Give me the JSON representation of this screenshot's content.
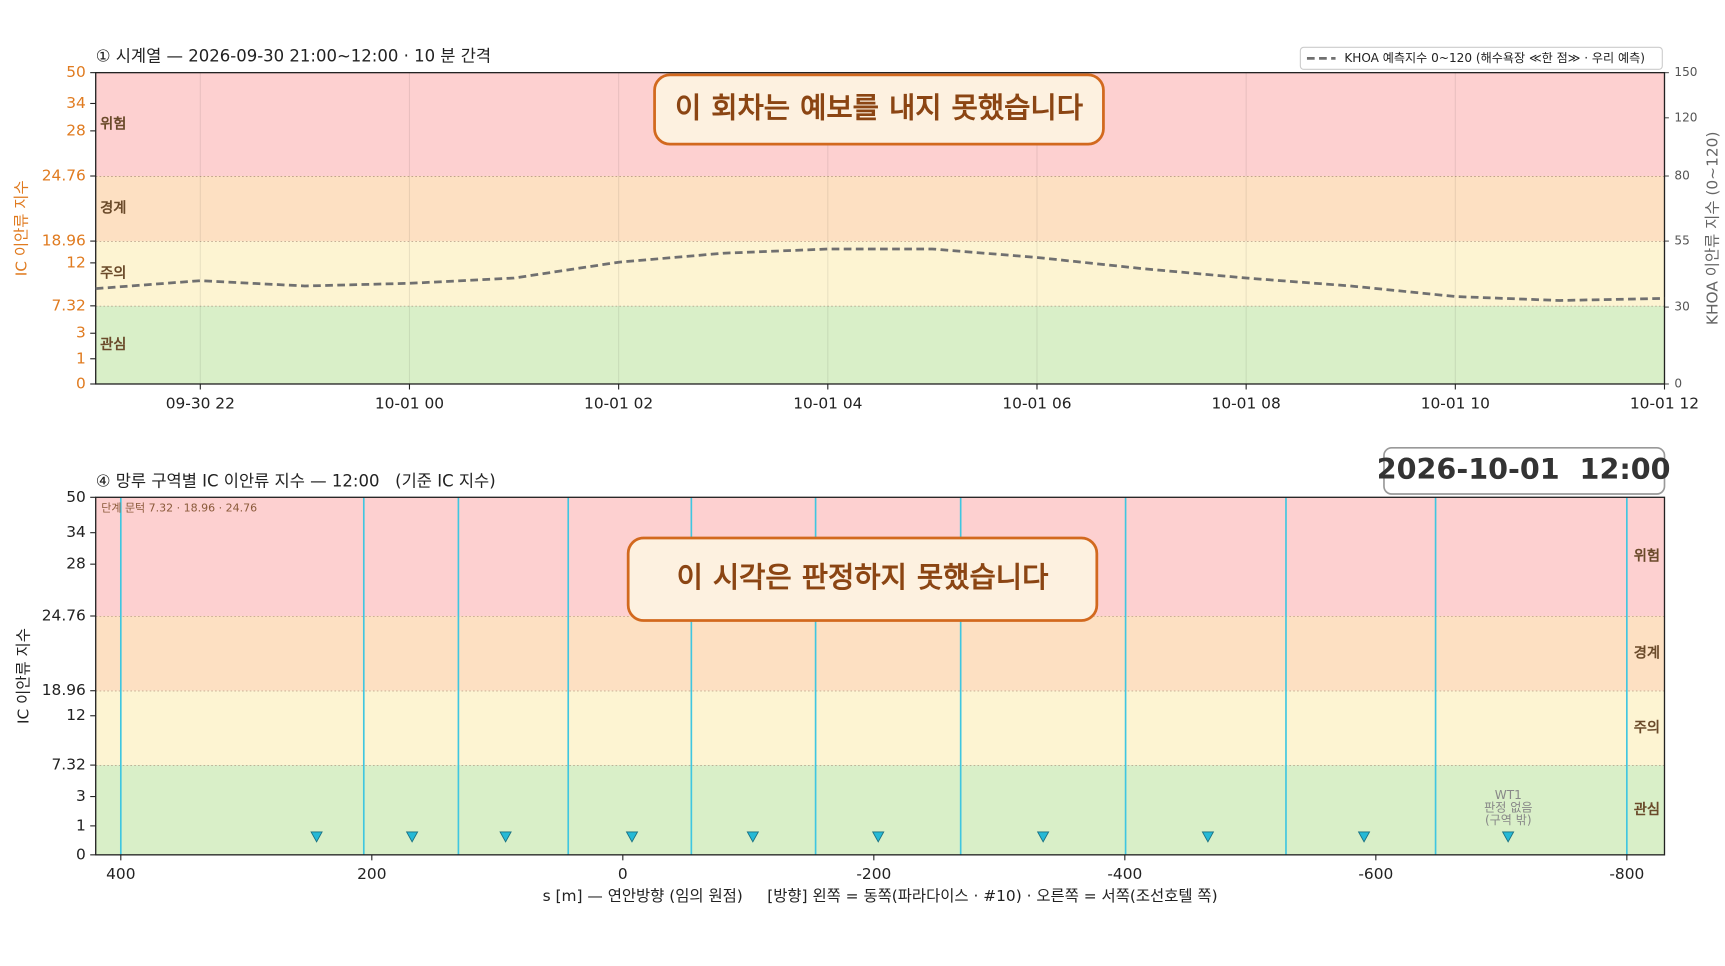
{
  "chart_data": [
    {
      "type": "line",
      "title": "① 시계열 — 2026-09-30 21:00~12:00 · 10 분 간격",
      "ylabel": "IC 이안류 지수",
      "ylabel_color": "#e07b20",
      "y2label": "KHOA 이안류 지수 (0~120)",
      "xlim": [
        "2026-09-30 21:00",
        "2026-10-01 12:00"
      ],
      "xticks": [
        {
          "value": "2026-09-30 22:00",
          "label": "09-30 22"
        },
        {
          "value": "2026-10-01 00:00",
          "label": "10-01 00"
        },
        {
          "value": "2026-10-01 02:00",
          "label": "10-01 02"
        },
        {
          "value": "2026-10-01 04:00",
          "label": "10-01 04"
        },
        {
          "value": "2026-10-01 06:00",
          "label": "10-01 06"
        },
        {
          "value": "2026-10-01 08:00",
          "label": "10-01 08"
        },
        {
          "value": "2026-10-01 10:00",
          "label": "10-01 10"
        },
        {
          "value": "2026-10-01 12:00",
          "label": "10-01 12"
        }
      ],
      "ylim": [
        0,
        50
      ],
      "yticks": [
        0,
        1,
        3,
        7.32,
        12,
        18.96,
        24.76,
        28,
        34,
        50
      ],
      "y2lim": [
        0,
        150
      ],
      "y2ticks": [
        0,
        30,
        55,
        80,
        120,
        150
      ],
      "grid": true,
      "legend": "upper right",
      "bands": [
        {
          "label": "관심",
          "range": [
            0,
            7.32
          ],
          "color": "#d9efc8"
        },
        {
          "label": "주의",
          "range": [
            7.32,
            18.96
          ],
          "color": "#fdf4d2"
        },
        {
          "label": "경계",
          "range": [
            18.96,
            24.76
          ],
          "color": "#fde0c2"
        },
        {
          "label": "위험",
          "range": [
            24.76,
            50
          ],
          "color": "#fdd0d0"
        }
      ],
      "band_label_side": "left",
      "x": [
        "2026-09-30 21:00",
        "2026-09-30 22:00",
        "2026-09-30 23:00",
        "2026-10-01 00:00",
        "2026-10-01 01:00",
        "2026-10-01 02:00",
        "2026-10-01 03:00",
        "2026-10-01 04:00",
        "2026-10-01 05:00",
        "2026-10-01 06:00",
        "2026-10-01 07:00",
        "2026-10-01 08:00",
        "2026-10-01 09:00",
        "2026-10-01 10:00",
        "2026-10-01 11:00",
        "2026-10-01 12:00"
      ],
      "series": [
        {
          "name": "KHOA 예측지수 0~120 (해수욕장 ≪한 점≫ · 우리 예측)",
          "color": "#707070",
          "axis": "y2",
          "values": [
            37,
            40,
            38,
            39,
            41,
            47,
            50.4,
            52,
            52,
            48.8,
            44.6,
            41,
            38,
            34,
            32.5,
            33.3
          ]
        }
      ],
      "annotation": "이 회차는 예보를 내지 못했습니다"
    },
    {
      "type": "scatter",
      "title": "④ 망루 구역별 IC 이안류 지수 — 12:00   (기준 IC 지수)",
      "timestamp": "2026-10-01  12:00",
      "ylabel": "IC 이안류 지수",
      "ylabel_color": "#222",
      "xlabel": "s [m] — 연안방향 (임의 원점)     [방향] 왼쪽 = 동쪽(파라다이스 · #10) · 오른쪽 = 서쪽(조선호텔 쪽)",
      "xlim": [
        420,
        -830
      ],
      "xticks": [
        400,
        200,
        0,
        -200,
        -400,
        -600,
        -800
      ],
      "ylim": [
        0,
        50
      ],
      "yticks": [
        0,
        1,
        3,
        7.32,
        12,
        18.96,
        24.76,
        28,
        34,
        50
      ],
      "bands": [
        {
          "label": "관심",
          "range": [
            0,
            7.32
          ],
          "color": "#d9efc8"
        },
        {
          "label": "주의",
          "range": [
            7.32,
            18.96
          ],
          "color": "#fdf4d2"
        },
        {
          "label": "경계",
          "range": [
            18.96,
            24.76
          ],
          "color": "#fde0c2"
        },
        {
          "label": "위험",
          "range": [
            24.76,
            50
          ],
          "color": "#fdd0d0"
        }
      ],
      "band_label_side": "right",
      "threshold_note": "단계 문턱 7.32 · 18.96 · 24.76",
      "zone_boundaries": [
        400,
        206.4,
        131,
        43.5,
        -54.6,
        -153.6,
        -269.2,
        -400.6,
        -528.4,
        -647.6,
        -800
      ],
      "zone_color": "#3fc6e0",
      "series": [
        {
          "color": "#25b9d6",
          "x": [
            244,
            167.9,
            93.4,
            -7.3,
            -103.6,
            -203.5,
            -334.9,
            -466.2,
            -590.6,
            -705.4
          ],
          "values": [
            0.6,
            0.6,
            0.6,
            0.6,
            0.6,
            0.6,
            0.6,
            0.6,
            0.6,
            0.6
          ]
        }
      ],
      "point_note": [
        "WT1",
        "판정 없음",
        "(구역 밖)"
      ],
      "annotation": "이 시각은 판정하지 못했습니다"
    }
  ]
}
